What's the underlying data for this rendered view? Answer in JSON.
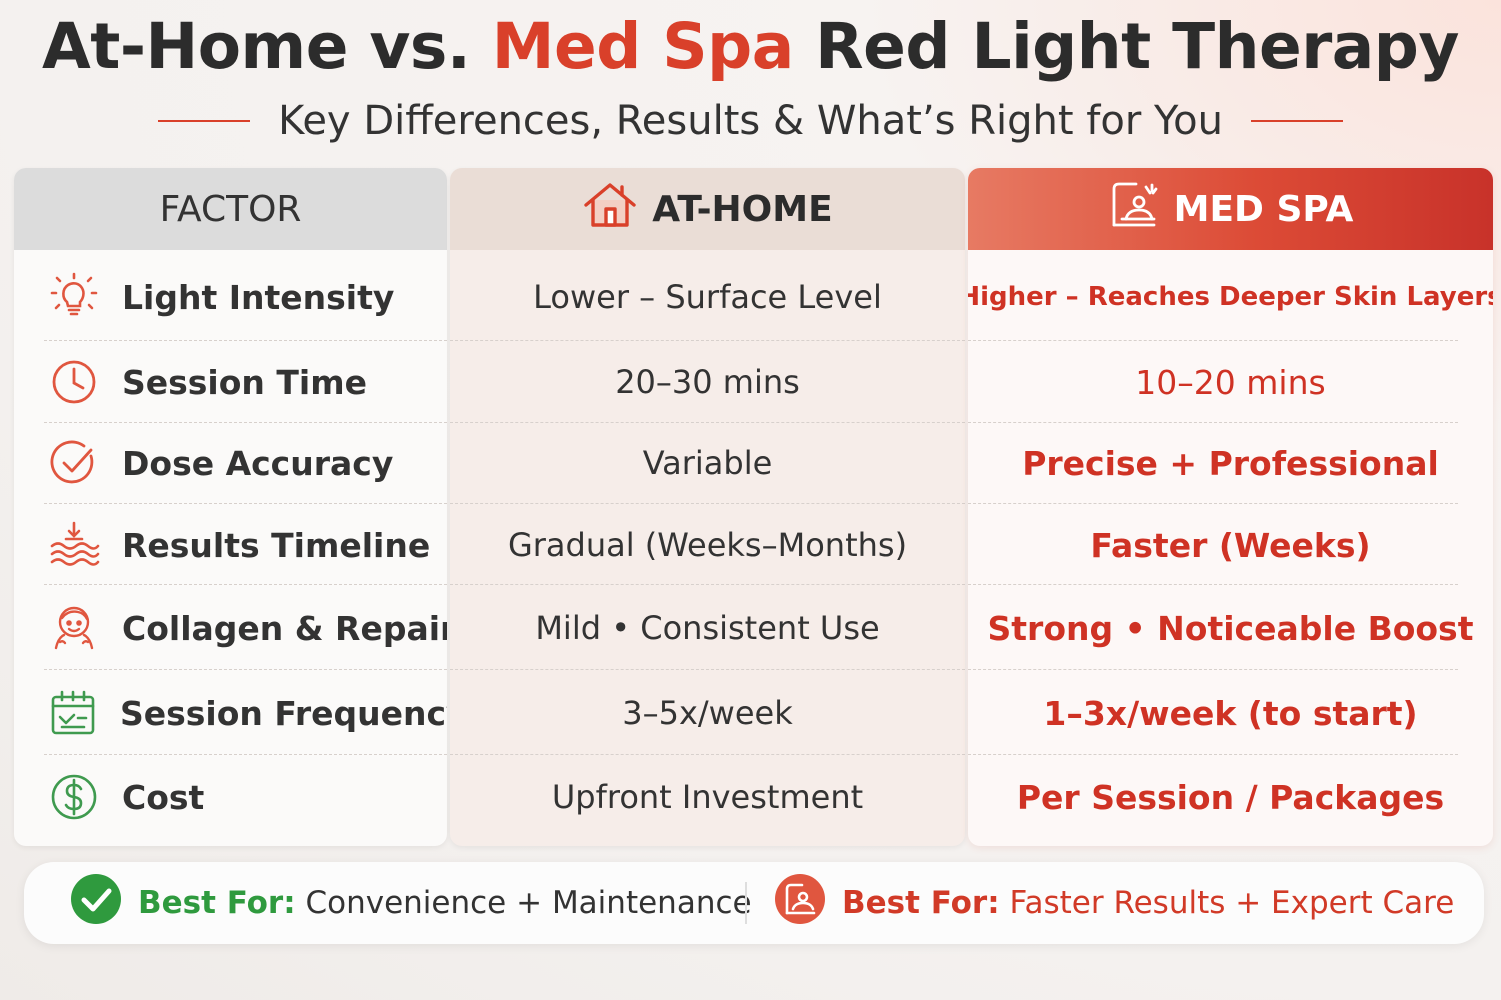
{
  "header": {
    "title_part1": "At-Home vs.",
    "title_accent": "Med Spa",
    "title_part2": "Red Light Therapy",
    "subtitle": "Key Differences, Results & What’s Right for You"
  },
  "columns": {
    "factor": "FACTOR",
    "home": "AT-HOME",
    "spa": "MED SPA"
  },
  "rows": [
    {
      "factor": "Light Intensity",
      "icon": "lightbulb-icon",
      "home": "Lower – Surface Level",
      "spa": "Higher – Reaches Deeper Skin Layers"
    },
    {
      "factor": "Session Time",
      "icon": "clock-icon",
      "home": "20–30 mins",
      "spa": "10–20 mins"
    },
    {
      "factor": "Dose Accuracy",
      "icon": "check-circle-icon",
      "home": "Variable",
      "spa": "Precise + Professional"
    },
    {
      "factor": "Results Timeline",
      "icon": "waves-icon",
      "home": "Gradual (Weeks–Months)",
      "spa": "Faster (Weeks)"
    },
    {
      "factor": "Collagen & Repair",
      "icon": "face-icon",
      "home": "Mild • Consistent Use",
      "spa": "Strong • Noticeable Boost"
    },
    {
      "factor": "Session Frequency",
      "icon": "calendar-icon",
      "home": "3–5x/week",
      "spa": "1–3x/week (to start)"
    },
    {
      "factor": "Cost",
      "icon": "dollar-icon",
      "home": "Upfront Investment",
      "spa": "Per Session / Packages"
    }
  ],
  "bottom": {
    "home_label": "Best For:",
    "home_text": "Convenience + Maintenance",
    "spa_label": "Best For:",
    "spa_text": "Faster Results + Expert Care"
  },
  "colors": {
    "accent_red": "#d9402a",
    "green": "#2f9a3e",
    "icon_orange": "#e0563f"
  }
}
